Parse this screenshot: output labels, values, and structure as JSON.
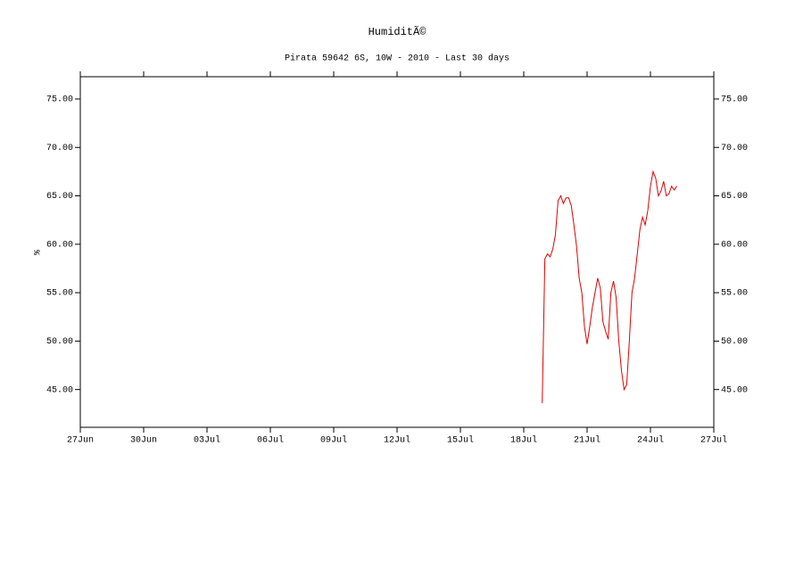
{
  "chart_data": {
    "type": "line",
    "title": "HumiditÃ©",
    "subtitle": "Pirata 59642 6S, 10W - 2010 - Last 30 days",
    "y_label": "%",
    "xlim": [
      "2010-06-27T00:00",
      "2010-07-27T00:00"
    ],
    "xticks": [
      {
        "value": "2010-06-27T00:00",
        "label": "27Jun"
      },
      {
        "value": "2010-06-30T00:00",
        "label": "30Jun"
      },
      {
        "value": "2010-07-03T00:00",
        "label": "03Jul"
      },
      {
        "value": "2010-07-06T00:00",
        "label": "06Jul"
      },
      {
        "value": "2010-07-09T00:00",
        "label": "09Jul"
      },
      {
        "value": "2010-07-12T00:00",
        "label": "12Jul"
      },
      {
        "value": "2010-07-15T00:00",
        "label": "15Jul"
      },
      {
        "value": "2010-07-18T00:00",
        "label": "18Jul"
      },
      {
        "value": "2010-07-21T00:00",
        "label": "21Jul"
      },
      {
        "value": "2010-07-24T00:00",
        "label": "24Jul"
      },
      {
        "value": "2010-07-27T00:00",
        "label": "27Jul"
      }
    ],
    "ylim": [
      41.1,
      77.3
    ],
    "yticks": [
      {
        "value": 45,
        "label": "45.00"
      },
      {
        "value": 50,
        "label": "50.00"
      },
      {
        "value": 55,
        "label": "55.00"
      },
      {
        "value": 60,
        "label": "60.00"
      },
      {
        "value": 65,
        "label": "65.00"
      },
      {
        "value": 70,
        "label": "70.00"
      },
      {
        "value": 75,
        "label": "75.00"
      }
    ],
    "right_axis": true,
    "grid": false,
    "x": [
      "2010-07-18T21:00",
      "2010-07-19T00:00",
      "2010-07-19T03:00",
      "2010-07-19T06:00",
      "2010-07-19T09:00",
      "2010-07-19T12:00",
      "2010-07-19T15:00",
      "2010-07-19T18:00",
      "2010-07-19T21:00",
      "2010-07-20T00:00",
      "2010-07-20T03:00",
      "2010-07-20T06:00",
      "2010-07-20T09:00",
      "2010-07-20T12:00",
      "2010-07-20T15:00",
      "2010-07-20T18:00",
      "2010-07-20T21:00",
      "2010-07-21T00:00",
      "2010-07-21T03:00",
      "2010-07-21T06:00",
      "2010-07-21T09:00",
      "2010-07-21T12:00",
      "2010-07-21T15:00",
      "2010-07-21T18:00",
      "2010-07-21T21:00",
      "2010-07-22T00:00",
      "2010-07-22T03:00",
      "2010-07-22T06:00",
      "2010-07-22T09:00",
      "2010-07-22T12:00",
      "2010-07-22T15:00",
      "2010-07-22T18:00",
      "2010-07-22T21:00",
      "2010-07-23T00:00",
      "2010-07-23T03:00",
      "2010-07-23T06:00",
      "2010-07-23T09:00",
      "2010-07-23T12:00",
      "2010-07-23T15:00",
      "2010-07-23T18:00",
      "2010-07-23T21:00",
      "2010-07-24T00:00",
      "2010-07-24T03:00",
      "2010-07-24T06:00",
      "2010-07-24T09:00",
      "2010-07-24T12:00",
      "2010-07-24T15:00",
      "2010-07-24T18:00",
      "2010-07-24T21:00",
      "2010-07-25T00:00",
      "2010-07-25T03:00",
      "2010-07-25T06:00"
    ],
    "series": [
      {
        "color": "#e00000",
        "values": [
          43.6,
          58.5,
          59,
          58.7,
          59.5,
          61,
          64.5,
          65,
          64.2,
          64.8,
          64.8,
          64,
          62,
          59.8,
          56.5,
          55,
          51.5,
          49.7,
          51.5,
          53.5,
          55,
          56.5,
          55.5,
          52,
          51,
          50.2,
          55,
          56.2,
          54.5,
          50,
          47,
          45,
          45.5,
          50,
          55,
          56.5,
          59,
          61.5,
          62.8,
          62,
          63.5,
          66,
          67.5,
          66.8,
          65,
          65.5,
          66.5,
          65,
          65.2,
          66,
          65.6,
          66
        ]
      }
    ]
  }
}
